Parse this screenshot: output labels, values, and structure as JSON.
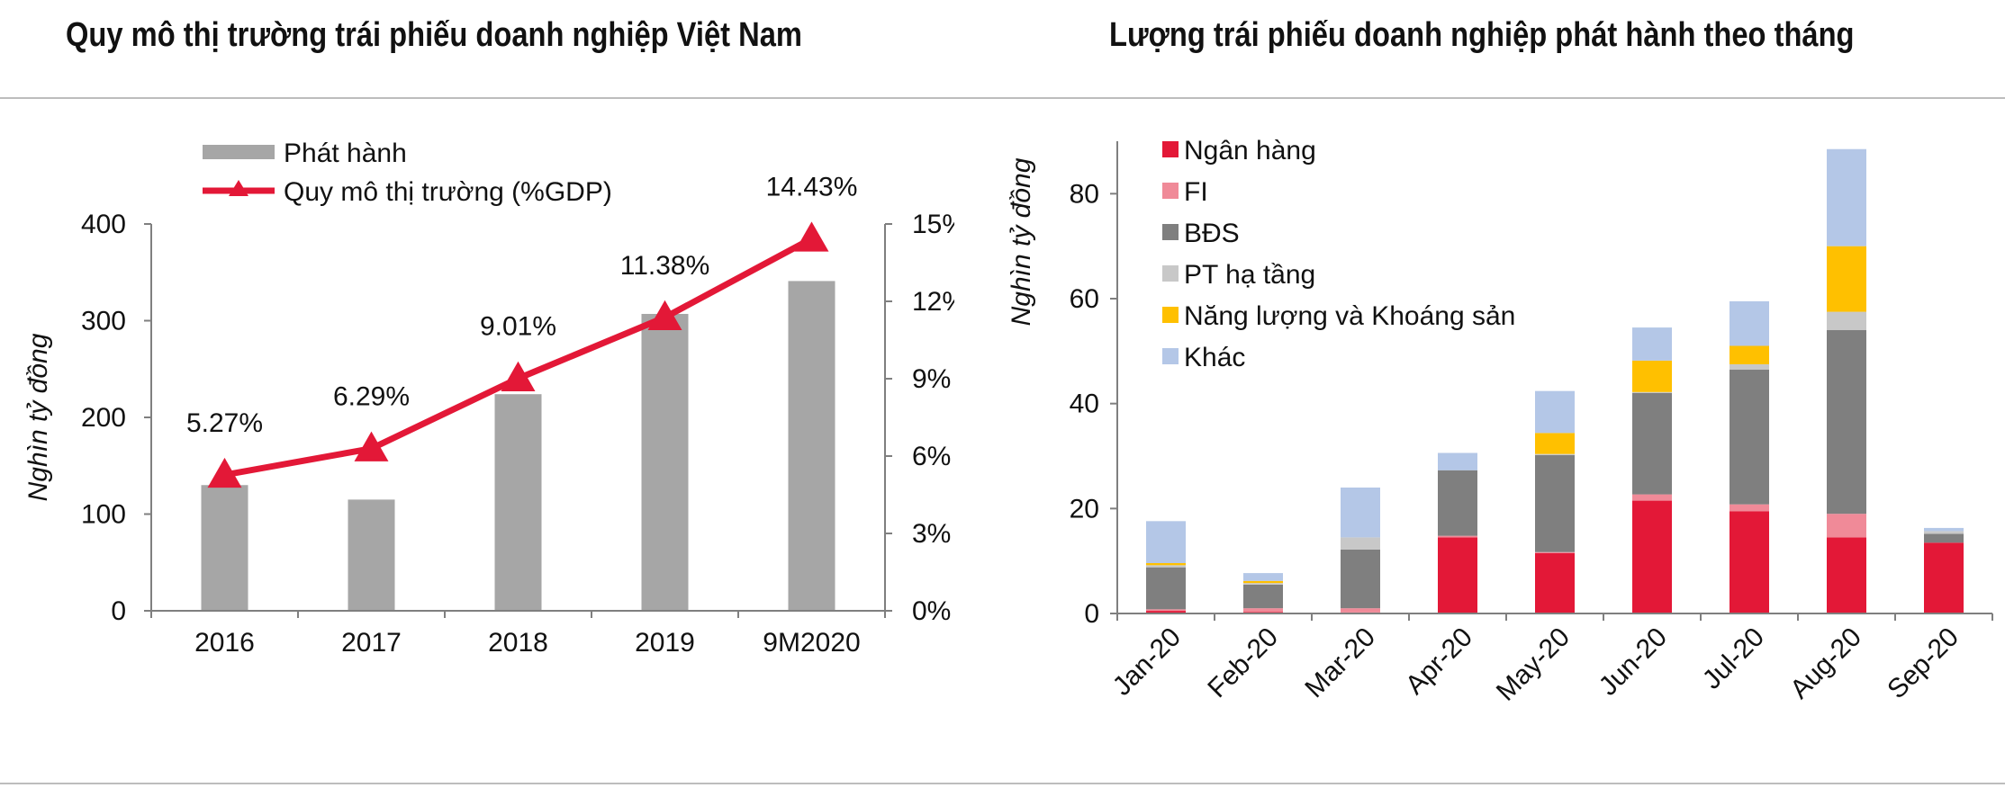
{
  "page": {
    "left_title": "Quy mô thị trường trái phiếu doanh nghiệp Việt Nam",
    "right_title": "Lượng trái phiếu doanh nghiệp phát hành theo tháng"
  },
  "chart_data": [
    {
      "type": "bar",
      "title": "Quy mô thị trường trái phiếu doanh nghiệp Việt Nam",
      "ylabel": "Nghìn tỷ đồng",
      "categories": [
        "2016",
        "2017",
        "2018",
        "2019",
        "9M2020"
      ],
      "ylim": [
        0,
        400
      ],
      "yticks": [
        "0",
        "100",
        "200",
        "300",
        "400"
      ],
      "y2lim": [
        0,
        15
      ],
      "y2ticks": [
        "0%",
        "3%",
        "6%",
        "9%",
        "12%",
        "15%"
      ],
      "legend_position": "top-left",
      "series": [
        {
          "name": "Phát hành",
          "kind": "bar",
          "color": "#a6a6a6",
          "values": [
            130,
            115,
            224,
            307,
            341
          ]
        },
        {
          "name": "Quy mô thị trường (%GDP)",
          "kind": "line",
          "axis": "right",
          "color": "#e31837",
          "values": [
            5.27,
            6.29,
            9.01,
            11.38,
            14.43
          ],
          "labels": [
            "5.27%",
            "6.29%",
            "9.01%",
            "11.38%",
            "14.43%"
          ]
        }
      ]
    },
    {
      "type": "bar",
      "stacked": true,
      "title": "Lượng trái phiếu doanh nghiệp phát hành theo tháng",
      "ylabel": "Nghìn tỷ đồng",
      "categories": [
        "Jan-20",
        "Feb-20",
        "Mar-20",
        "Apr-20",
        "May-20",
        "Jun-20",
        "Jul-20",
        "Aug-20",
        "Sep-20"
      ],
      "ylim": [
        0,
        90
      ],
      "yticks": [
        "0",
        "20",
        "40",
        "60",
        "80"
      ],
      "legend_position": "top-left",
      "series": [
        {
          "name": "Ngân hàng",
          "color": "#e31837",
          "values": [
            0.5,
            0.3,
            0.2,
            14.5,
            11.5,
            21.5,
            19.5,
            14.5,
            13.5
          ]
        },
        {
          "name": "FI",
          "color": "#f08a98",
          "values": [
            0.3,
            0.7,
            0.8,
            0.3,
            0.2,
            1.2,
            1.3,
            4.5,
            0
          ]
        },
        {
          "name": "BĐS",
          "color": "#7f7f7f",
          "values": [
            8.0,
            4.5,
            11.2,
            12.5,
            18.5,
            19.3,
            25.7,
            35.0,
            1.7
          ]
        },
        {
          "name": "PT hạ tầng",
          "color": "#c8c8c8",
          "values": [
            0.4,
            0.3,
            2.3,
            0,
            0.2,
            0.2,
            1.0,
            3.5,
            0.5
          ]
        },
        {
          "name": "Năng lượng và Khoáng sản",
          "color": "#ffc000",
          "values": [
            0.4,
            0.4,
            0,
            0,
            4.0,
            6.0,
            3.5,
            12.5,
            0
          ]
        },
        {
          "name": "Khác",
          "color": "#b4c7e7",
          "values": [
            8.0,
            1.5,
            9.5,
            3.3,
            8.0,
            6.3,
            8.5,
            18.5,
            0.6
          ]
        }
      ]
    }
  ]
}
